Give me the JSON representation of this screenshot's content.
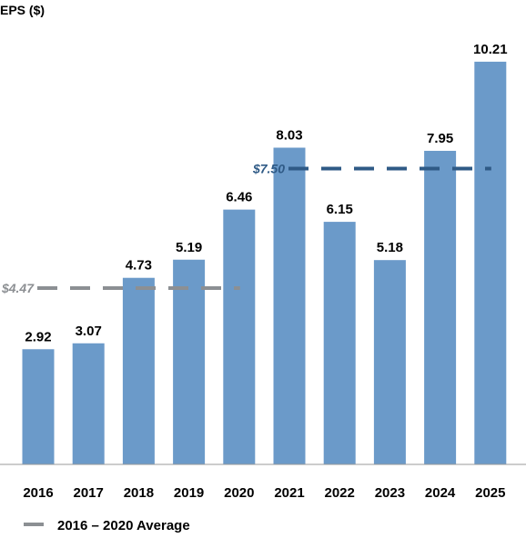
{
  "chart_data": {
    "type": "bar",
    "ylabel": "EPS ($)",
    "categories": [
      "2016",
      "2017",
      "2018",
      "2019",
      "2020",
      "2021",
      "2022",
      "2023",
      "2024",
      "2025"
    ],
    "values": [
      2.92,
      3.07,
      4.73,
      5.19,
      6.46,
      8.03,
      6.15,
      5.18,
      7.95,
      10.21
    ],
    "value_labels": [
      "2.92",
      "3.07",
      "4.73",
      "5.19",
      "6.46",
      "8.03",
      "6.15",
      "5.18",
      "7.95",
      "10.21"
    ],
    "ylim": [
      0,
      11
    ],
    "grid": false,
    "bar_color": "#6b9ac9",
    "reference_lines": [
      {
        "label": "$4.47",
        "value": 4.47,
        "from": "2016",
        "to": "2020",
        "color": "#8c8f93",
        "style": "dashed"
      },
      {
        "label": "$7.50",
        "value": 7.5,
        "from": "2021",
        "to": "2025",
        "color": "#2f5a86",
        "style": "dashed"
      }
    ],
    "legend": {
      "position": "bottom-left",
      "entries": [
        {
          "label": "2016 – 2020 Average",
          "color": "#8c8f93",
          "style": "dashed"
        }
      ]
    }
  }
}
